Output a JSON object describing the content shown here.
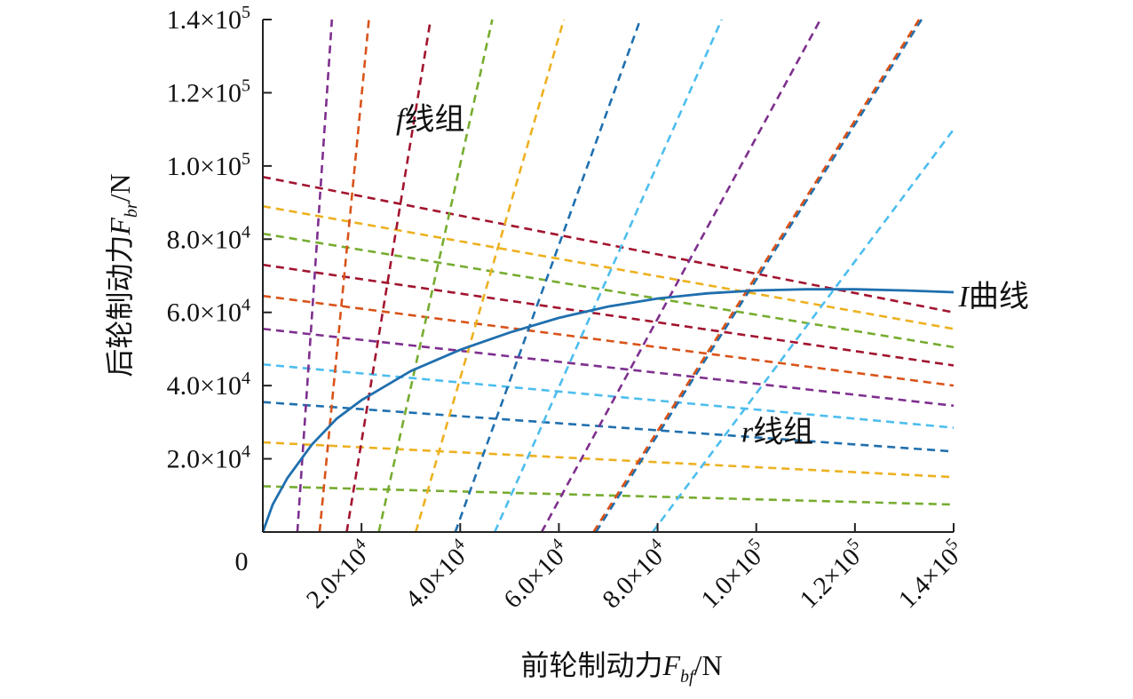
{
  "chart_data": {
    "type": "line",
    "xlabel": {
      "main": "前轮制动力",
      "var": "F",
      "sub": "bf",
      "unit": "/N"
    },
    "ylabel": {
      "main": "后轮制动力",
      "var": "F",
      "sub": "br",
      "unit": "/N"
    },
    "xlim": [
      0,
      140000
    ],
    "ylim": [
      0,
      140000
    ],
    "x_ticks": [
      {
        "value": 20000,
        "mant": "2.0×10",
        "exp": "4"
      },
      {
        "value": 40000,
        "mant": "4.0×10",
        "exp": "4"
      },
      {
        "value": 60000,
        "mant": "6.0×10",
        "exp": "4"
      },
      {
        "value": 80000,
        "mant": "8.0×10",
        "exp": "4"
      },
      {
        "value": 100000,
        "mant": "1.0×10",
        "exp": "5"
      },
      {
        "value": 120000,
        "mant": "1.2×10",
        "exp": "5"
      },
      {
        "value": 140000,
        "mant": "1.4×10",
        "exp": "5"
      }
    ],
    "y_ticks": [
      {
        "value": 20000,
        "mant": "2.0×10",
        "exp": "4"
      },
      {
        "value": 40000,
        "mant": "4.0×10",
        "exp": "4"
      },
      {
        "value": 60000,
        "mant": "6.0×10",
        "exp": "4"
      },
      {
        "value": 80000,
        "mant": "8.0×10",
        "exp": "4"
      },
      {
        "value": 100000,
        "mant": "1.0×10",
        "exp": "5"
      },
      {
        "value": 120000,
        "mant": "1.2×10",
        "exp": "5"
      },
      {
        "value": 140000,
        "mant": "1.4×10",
        "exp": "5"
      }
    ],
    "origin_label": "0",
    "grid": false,
    "colors": {
      "i_curve": "#1f6fae",
      "purple": "#7e2f8e",
      "orange": "#d95319",
      "yellow": "#edb120",
      "green": "#77ac30",
      "blue": "#1f6fae",
      "cyan": "#4dbeee",
      "red": "#a2142f"
    },
    "i_curve": {
      "name": "I曲线",
      "style": "solid",
      "color": "#1f6fae",
      "x": [
        0,
        2000,
        5000,
        10000,
        15000,
        20000,
        30000,
        40000,
        50000,
        60000,
        70000,
        80000,
        90000,
        100000,
        110000,
        120000,
        130000,
        140000
      ],
      "y": [
        0,
        7500,
        14800,
        24000,
        31000,
        36000,
        44000,
        49800,
        54500,
        58500,
        61600,
        63800,
        65200,
        66000,
        66300,
        66300,
        66000,
        65500
      ]
    },
    "f_lines": {
      "name": "f线组",
      "style": "dashed",
      "lines": [
        {
          "color": "#7e2f8e",
          "x": [
            7000,
            14000
          ],
          "y": [
            0,
            140000
          ]
        },
        {
          "color": "#d95319",
          "x": [
            11500,
            21500
          ],
          "y": [
            0,
            140000
          ]
        },
        {
          "color": "#a2142f",
          "x": [
            17000,
            34000
          ],
          "y": [
            0,
            140000
          ]
        },
        {
          "color": "#77ac30",
          "x": [
            23500,
            46500
          ],
          "y": [
            0,
            140000
          ]
        },
        {
          "color": "#edb120",
          "x": [
            31000,
            61000
          ],
          "y": [
            0,
            140000
          ]
        },
        {
          "color": "#1f6fae",
          "x": [
            39000,
            76500
          ],
          "y": [
            0,
            140000
          ]
        },
        {
          "color": "#4dbeee",
          "x": [
            47000,
            93000
          ],
          "y": [
            0,
            140000
          ]
        },
        {
          "color": "#7e2f8e",
          "x": [
            56500,
            113000
          ],
          "y": [
            0,
            140000
          ]
        },
        {
          "color": "#1f6fae",
          "x": [
            67500,
            133500
          ],
          "y": [
            0,
            140000
          ]
        },
        {
          "color": "#d95319",
          "x": [
            67000,
            133000
          ],
          "y": [
            0,
            140000
          ]
        },
        {
          "color": "#4dbeee",
          "x": [
            79000,
            140000
          ],
          "y": [
            0,
            110000
          ]
        }
      ]
    },
    "r_lines": {
      "name": "r线组",
      "style": "dashed",
      "lines": [
        {
          "color": "#77ac30",
          "x": [
            0,
            140000
          ],
          "y": [
            12500,
            7500
          ]
        },
        {
          "color": "#edb120",
          "x": [
            0,
            140000
          ],
          "y": [
            24500,
            15000
          ]
        },
        {
          "color": "#1f6fae",
          "x": [
            0,
            140000
          ],
          "y": [
            35500,
            22000
          ]
        },
        {
          "color": "#4dbeee",
          "x": [
            0,
            140000
          ],
          "y": [
            45800,
            28500
          ]
        },
        {
          "color": "#7e2f8e",
          "x": [
            0,
            140000
          ],
          "y": [
            55500,
            34500
          ]
        },
        {
          "color": "#d95319",
          "x": [
            0,
            140000
          ],
          "y": [
            64500,
            40000
          ]
        },
        {
          "color": "#a2142f",
          "x": [
            0,
            140000
          ],
          "y": [
            73000,
            45500
          ]
        },
        {
          "color": "#77ac30",
          "x": [
            0,
            140000
          ],
          "y": [
            81500,
            50500
          ]
        },
        {
          "color": "#edb120",
          "x": [
            0,
            140000
          ],
          "y": [
            89000,
            55500
          ]
        },
        {
          "color": "#a2142f",
          "x": [
            0,
            140000
          ],
          "y": [
            97000,
            60000
          ]
        }
      ]
    },
    "annotations": [
      {
        "id": "f-group",
        "var": "f",
        "text": "线组",
        "x": 27000,
        "y": 113000
      },
      {
        "id": "r-group",
        "var": "r",
        "text": "线组",
        "x": 97000,
        "y": 27500
      },
      {
        "id": "i-curve",
        "var": "I",
        "text": "曲线",
        "x": 141000,
        "y": 64500
      }
    ]
  }
}
